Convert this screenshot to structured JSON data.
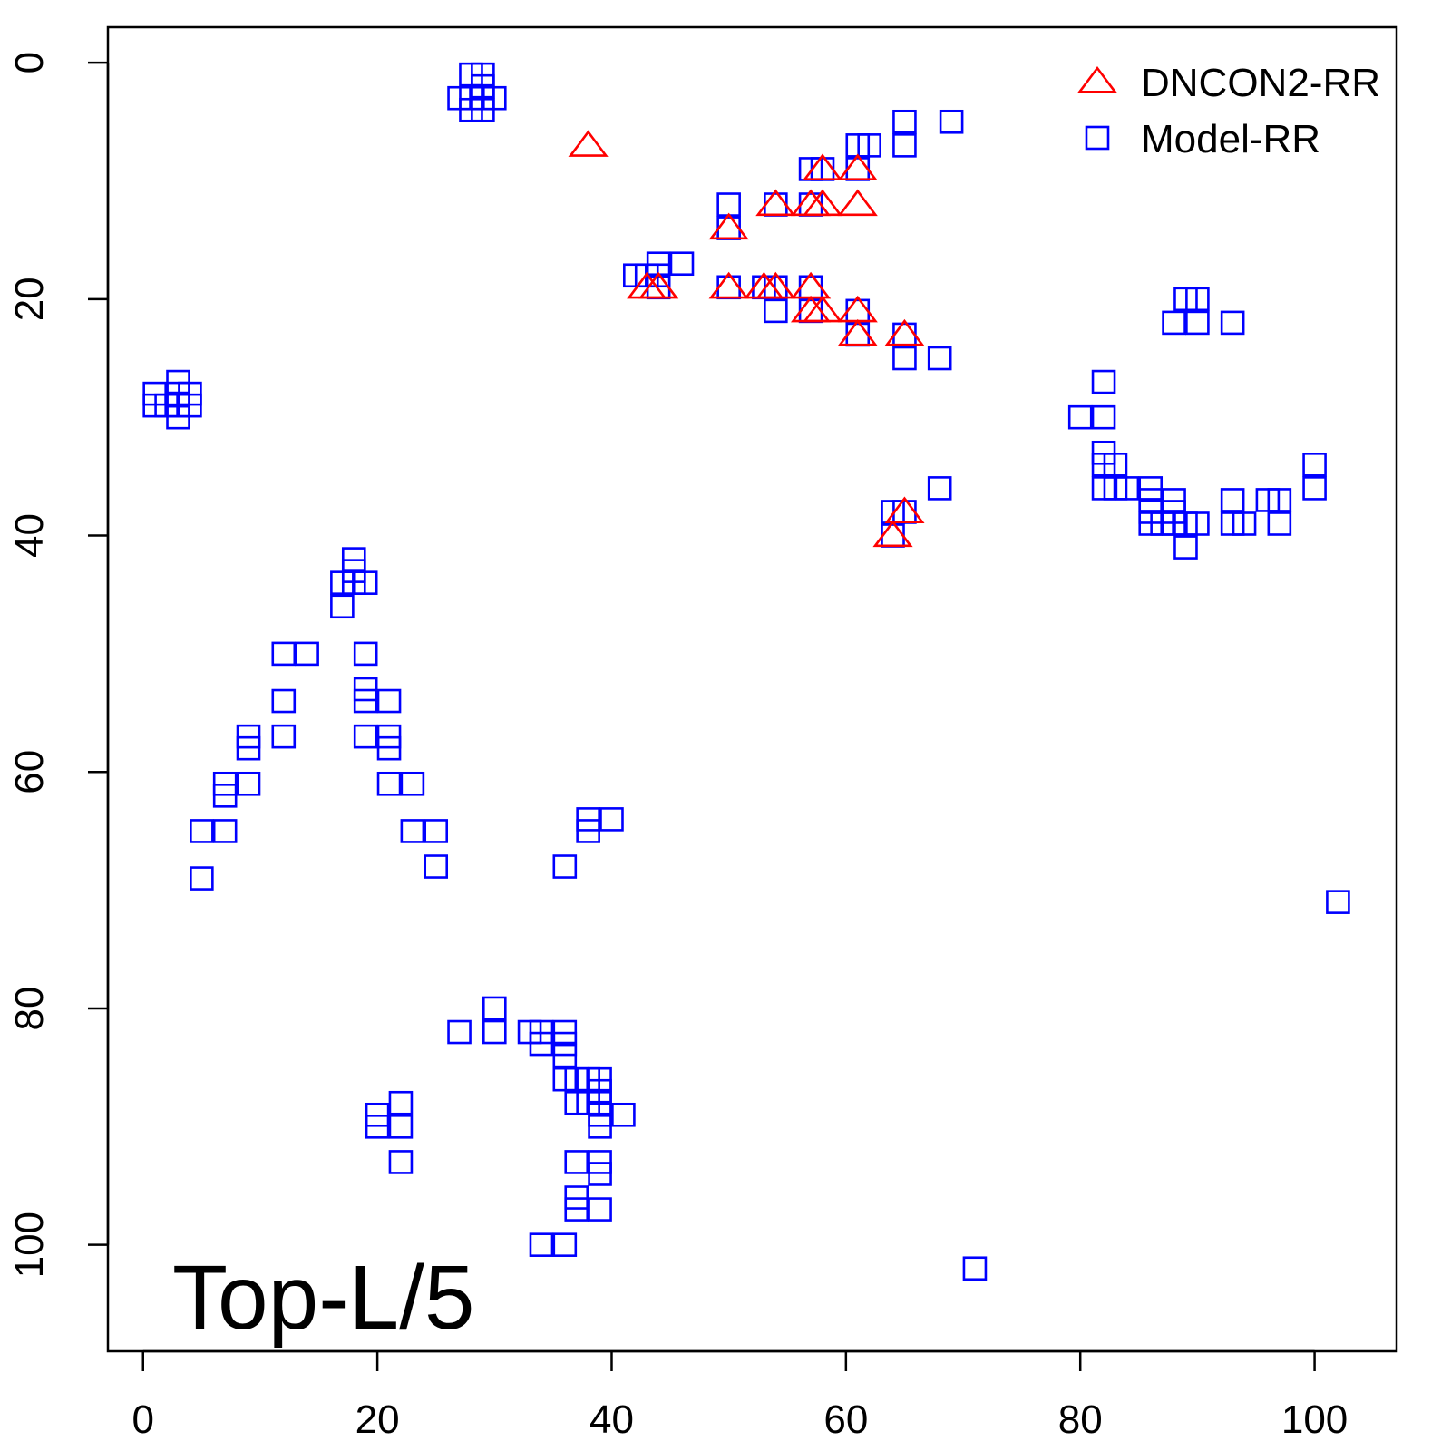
{
  "chart_data": {
    "type": "scatter",
    "title": "",
    "xlabel": "",
    "ylabel": "",
    "xlim": [
      -3,
      107
    ],
    "ylim": [
      109,
      -3
    ],
    "y_axis_reversed": true,
    "x_ticks": [
      "0",
      "20",
      "40",
      "60",
      "80",
      "100"
    ],
    "y_ticks": [
      "0",
      "20",
      "40",
      "60",
      "80",
      "100"
    ],
    "grid": false,
    "legend_position": "top-right",
    "annotation": "Top-L/5",
    "series": [
      {
        "name": "DNCON2-RR",
        "marker": "triangle",
        "color": "#ff0000",
        "points": [
          [
            38,
            7
          ],
          [
            58,
            9
          ],
          [
            61,
            9
          ],
          [
            54,
            12
          ],
          [
            57,
            12
          ],
          [
            58,
            12
          ],
          [
            61,
            12
          ],
          [
            50,
            14
          ],
          [
            43,
            19
          ],
          [
            44,
            19
          ],
          [
            50,
            19
          ],
          [
            53,
            19
          ],
          [
            54,
            19
          ],
          [
            57,
            19
          ],
          [
            57,
            21
          ],
          [
            58,
            21
          ],
          [
            61,
            21
          ],
          [
            61,
            23
          ],
          [
            65,
            23
          ],
          [
            65,
            38
          ],
          [
            64,
            40
          ]
        ]
      },
      {
        "name": "Model-RR",
        "marker": "square",
        "color": "#0000ff",
        "points": [
          [
            28,
            1
          ],
          [
            29,
            1
          ],
          [
            29,
            2
          ],
          [
            27,
            3
          ],
          [
            28,
            3
          ],
          [
            29,
            3
          ],
          [
            30,
            3
          ],
          [
            28,
            4
          ],
          [
            29,
            4
          ],
          [
            65,
            5
          ],
          [
            69,
            5
          ],
          [
            61,
            7
          ],
          [
            62,
            7
          ],
          [
            65,
            7
          ],
          [
            57,
            9
          ],
          [
            58,
            9
          ],
          [
            61,
            9
          ],
          [
            50,
            12
          ],
          [
            54,
            12
          ],
          [
            57,
            12
          ],
          [
            50,
            14
          ],
          [
            44,
            17
          ],
          [
            46,
            17
          ],
          [
            42,
            18
          ],
          [
            43,
            18
          ],
          [
            44,
            18
          ],
          [
            44,
            19
          ],
          [
            50,
            19
          ],
          [
            53,
            19
          ],
          [
            54,
            19
          ],
          [
            57,
            19
          ],
          [
            54,
            21
          ],
          [
            57,
            21
          ],
          [
            61,
            21
          ],
          [
            61,
            23
          ],
          [
            65,
            23
          ],
          [
            65,
            25
          ],
          [
            68,
            25
          ],
          [
            89,
            20
          ],
          [
            90,
            20
          ],
          [
            88,
            22
          ],
          [
            90,
            22
          ],
          [
            93,
            22
          ],
          [
            3,
            27
          ],
          [
            1,
            28
          ],
          [
            3,
            28
          ],
          [
            4,
            28
          ],
          [
            1,
            29
          ],
          [
            2,
            29
          ],
          [
            3,
            29
          ],
          [
            4,
            29
          ],
          [
            3,
            30
          ],
          [
            82,
            27
          ],
          [
            80,
            30
          ],
          [
            82,
            30
          ],
          [
            82,
            33
          ],
          [
            82,
            34
          ],
          [
            83,
            34
          ],
          [
            82,
            36
          ],
          [
            83,
            36
          ],
          [
            84,
            36
          ],
          [
            86,
            36
          ],
          [
            86,
            37
          ],
          [
            88,
            37
          ],
          [
            93,
            37
          ],
          [
            96,
            37
          ],
          [
            97,
            37
          ],
          [
            86,
            38
          ],
          [
            88,
            38
          ],
          [
            86,
            39
          ],
          [
            87,
            39
          ],
          [
            88,
            39
          ],
          [
            89,
            39
          ],
          [
            90,
            39
          ],
          [
            93,
            39
          ],
          [
            94,
            39
          ],
          [
            97,
            39
          ],
          [
            89,
            41
          ],
          [
            100,
            34
          ],
          [
            100,
            36
          ],
          [
            68,
            36
          ],
          [
            64,
            38
          ],
          [
            65,
            38
          ],
          [
            64,
            40
          ],
          [
            18,
            42
          ],
          [
            18,
            43
          ],
          [
            17,
            44
          ],
          [
            18,
            44
          ],
          [
            19,
            44
          ],
          [
            17,
            46
          ],
          [
            12,
            50
          ],
          [
            14,
            50
          ],
          [
            19,
            50
          ],
          [
            19,
            53
          ],
          [
            19,
            54
          ],
          [
            12,
            54
          ],
          [
            21,
            54
          ],
          [
            12,
            57
          ],
          [
            19,
            57
          ],
          [
            21,
            57
          ],
          [
            9,
            57
          ],
          [
            9,
            58
          ],
          [
            21,
            58
          ],
          [
            7,
            61
          ],
          [
            9,
            61
          ],
          [
            21,
            61
          ],
          [
            23,
            61
          ],
          [
            7,
            62
          ],
          [
            5,
            65
          ],
          [
            7,
            65
          ],
          [
            23,
            65
          ],
          [
            25,
            65
          ],
          [
            25,
            68
          ],
          [
            5,
            69
          ],
          [
            38,
            64
          ],
          [
            40,
            64
          ],
          [
            38,
            65
          ],
          [
            36,
            68
          ],
          [
            102,
            71
          ],
          [
            30,
            80
          ],
          [
            27,
            82
          ],
          [
            30,
            82
          ],
          [
            33,
            82
          ],
          [
            34,
            82
          ],
          [
            36,
            82
          ],
          [
            34,
            83
          ],
          [
            36,
            83
          ],
          [
            36,
            84
          ],
          [
            36,
            86
          ],
          [
            37,
            86
          ],
          [
            38,
            86
          ],
          [
            39,
            86
          ],
          [
            39,
            87
          ],
          [
            37,
            88
          ],
          [
            38,
            88
          ],
          [
            39,
            88
          ],
          [
            22,
            88
          ],
          [
            39,
            89
          ],
          [
            41,
            89
          ],
          [
            20,
            89
          ],
          [
            20,
            90
          ],
          [
            22,
            90
          ],
          [
            39,
            90
          ],
          [
            22,
            93
          ],
          [
            37,
            93
          ],
          [
            39,
            93
          ],
          [
            39,
            94
          ],
          [
            37,
            96
          ],
          [
            37,
            97
          ],
          [
            39,
            97
          ],
          [
            34,
            100
          ],
          [
            36,
            100
          ],
          [
            71,
            102
          ]
        ]
      }
    ]
  }
}
